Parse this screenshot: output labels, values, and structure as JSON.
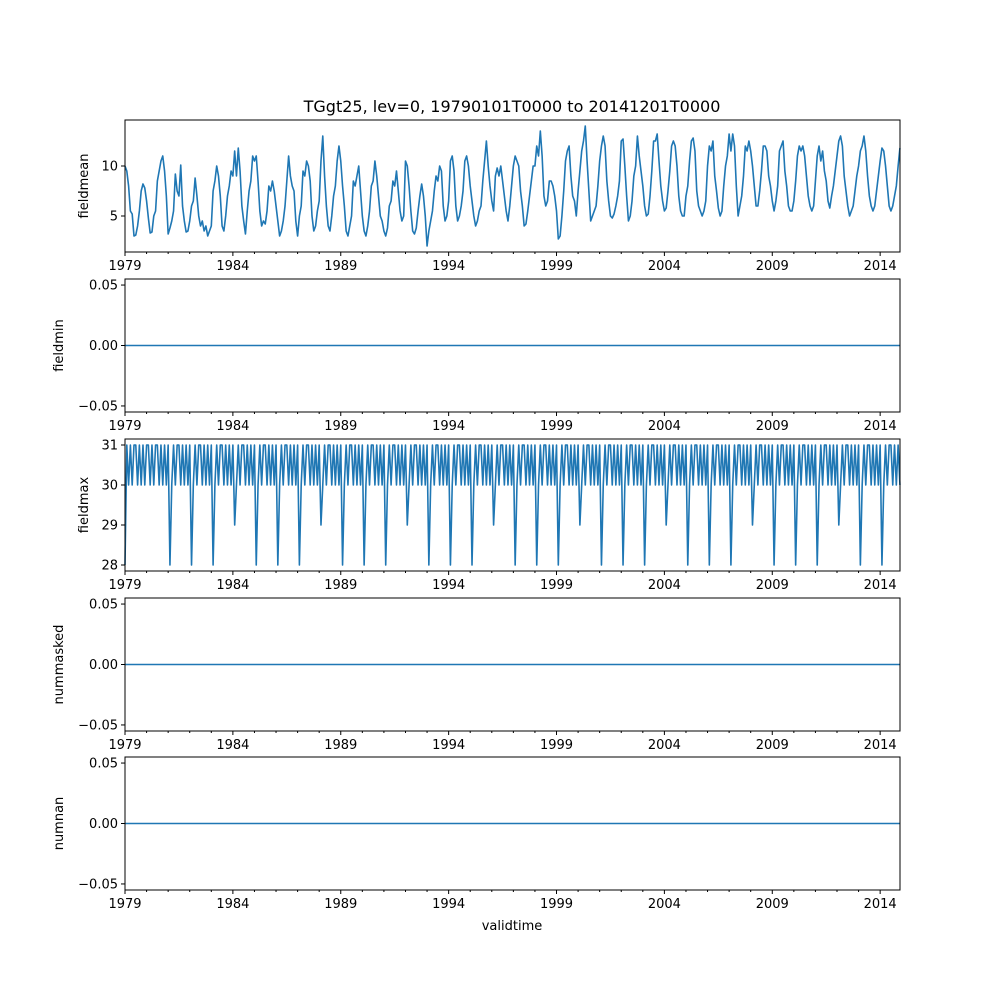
{
  "chart_data": {
    "type": "line",
    "title": "TGgt25, lev=0, 19790101T0000 to 20141201T0000",
    "xlabel": "validtime",
    "series_color": "#1f77b4",
    "x_start": "1979-01",
    "x_end": "2014-12",
    "x_range_years": [
      1979,
      2014.92
    ],
    "xtick_labels": [
      "1979",
      "1984",
      "1989",
      "1994",
      "1999",
      "2004",
      "2009",
      "2014"
    ],
    "panels": [
      {
        "name": "fieldmean",
        "ylabel": "fieldmean",
        "ylim": [
          1.4,
          14.6
        ],
        "yticks": [
          5,
          10
        ],
        "ytick_labels": [
          "5",
          "10"
        ],
        "annual_values": [
          [
            10.0,
            9.5,
            8.0,
            5.5,
            5.2,
            3.0,
            3.1,
            4.0,
            5.5,
            7.5,
            8.2,
            7.8
          ],
          [
            6.5,
            4.8,
            3.3,
            3.4,
            5.0,
            5.5,
            8.5,
            9.5,
            10.5,
            11.0,
            9.5,
            7.0
          ],
          [
            3.2,
            3.8,
            4.5,
            5.5,
            9.2,
            7.5,
            7.0,
            10.1,
            6.0,
            4.5,
            3.4,
            3.5
          ],
          [
            4.5,
            6.0,
            6.5,
            8.8,
            7.0,
            5.0,
            4.0,
            4.5,
            3.5,
            4.0,
            3.0,
            3.5
          ],
          [
            4.0,
            7.5,
            8.5,
            10.0,
            9.0,
            7.0,
            4.0,
            3.5,
            5.0,
            7.0,
            8.0,
            9.5
          ],
          [
            9.0,
            11.5,
            9.0,
            11.8,
            9.5,
            6.0,
            4.5,
            3.2,
            5.5,
            7.5,
            8.5,
            11.0
          ],
          [
            10.5,
            11.0,
            8.5,
            5.5,
            4.0,
            4.5,
            4.2,
            5.5,
            8.0,
            7.5,
            8.5,
            7.5
          ],
          [
            6.0,
            4.5,
            3.0,
            3.5,
            4.5,
            6.0,
            8.5,
            11.0,
            9.0,
            8.0,
            7.5,
            4.5
          ],
          [
            3.0,
            5.0,
            6.0,
            9.5,
            9.0,
            10.5,
            10.0,
            8.5,
            5.0,
            3.5,
            4.0,
            5.5
          ],
          [
            6.5,
            10.5,
            13.0,
            9.0,
            6.0,
            4.0,
            3.5,
            5.0,
            7.0,
            8.0,
            10.5,
            12.0
          ],
          [
            10.5,
            8.0,
            6.0,
            3.5,
            3.0,
            4.0,
            5.0,
            8.5,
            8.0,
            9.0,
            10.0,
            7.5
          ],
          [
            5.0,
            3.5,
            3.0,
            4.0,
            5.5,
            8.0,
            8.5,
            10.5,
            9.0,
            7.0,
            5.0,
            4.5
          ],
          [
            3.5,
            3.0,
            3.8,
            6.0,
            6.5,
            8.5,
            8.0,
            9.5,
            7.5,
            5.5,
            4.5,
            5.0
          ],
          [
            10.5,
            10.0,
            8.0,
            5.5,
            3.5,
            3.2,
            3.8,
            5.5,
            7.0,
            8.2,
            7.0,
            5.0
          ],
          [
            2.0,
            3.5,
            4.5,
            5.5,
            7.5,
            9.0,
            8.5,
            10.0,
            9.5,
            6.0,
            4.5,
            5.0
          ],
          [
            6.5,
            10.5,
            11.0,
            9.5,
            6.0,
            4.5,
            5.0,
            6.0,
            7.5,
            10.5,
            11.0,
            10.0
          ],
          [
            8.0,
            6.5,
            5.0,
            4.0,
            4.5,
            5.5,
            6.0,
            8.5,
            10.5,
            12.5,
            10.0,
            8.0
          ],
          [
            6.5,
            5.5,
            9.0,
            9.8,
            9.0,
            10.0,
            8.5,
            7.0,
            5.5,
            4.5,
            6.0,
            8.0
          ],
          [
            10.0,
            11.0,
            10.5,
            10.0,
            7.5,
            6.0,
            4.0,
            4.2,
            5.5,
            7.0,
            8.5,
            10.0
          ],
          [
            10.0,
            12.0,
            11.0,
            13.5,
            11.0,
            7.0,
            6.0,
            6.5,
            8.5,
            8.5,
            8.0,
            7.0
          ],
          [
            5.5,
            2.7,
            3.0,
            5.0,
            7.5,
            10.5,
            11.5,
            12.0,
            9.0,
            7.0,
            6.5,
            5.0
          ],
          [
            7.5,
            9.5,
            11.5,
            12.5,
            14.0,
            10.5,
            7.5,
            4.5,
            5.0,
            5.5,
            6.0,
            8.0
          ],
          [
            10.5,
            12.0,
            13.0,
            12.0,
            8.5,
            6.5,
            5.0,
            4.8,
            5.2,
            6.0,
            7.0,
            8.5
          ],
          [
            12.5,
            12.7,
            10.0,
            7.0,
            4.5,
            5.0,
            6.5,
            9.0,
            10.0,
            13.0,
            11.0,
            9.5
          ],
          [
            8.0,
            6.0,
            5.0,
            5.2,
            7.0,
            9.5,
            12.5,
            12.5,
            13.2,
            10.5,
            8.0,
            6.5
          ],
          [
            5.5,
            5.8,
            7.5,
            9.5,
            12.0,
            12.5,
            12.0,
            10.0,
            7.0,
            5.5,
            5.0,
            5.0
          ],
          [
            7.0,
            8.0,
            10.5,
            12.5,
            12.8,
            11.5,
            7.5,
            6.0,
            5.5,
            5.0,
            5.5,
            6.5
          ],
          [
            10.0,
            12.0,
            11.5,
            12.5,
            9.0,
            7.5,
            5.8,
            5.0,
            5.5,
            8.0,
            10.0,
            11.0
          ],
          [
            13.2,
            11.5,
            13.2,
            12.0,
            8.0,
            5.0,
            6.0,
            7.0,
            9.0,
            12.0,
            11.5,
            12.5
          ],
          [
            11.5,
            10.0,
            8.0,
            6.0,
            6.0,
            7.5,
            9.5,
            12.0,
            12.0,
            11.5,
            9.0,
            8.0
          ],
          [
            6.5,
            5.5,
            6.5,
            8.0,
            11.5,
            12.0,
            12.5,
            9.5,
            8.0,
            6.0,
            5.5,
            5.5
          ],
          [
            6.5,
            8.5,
            11.0,
            12.0,
            11.5,
            12.0,
            11.0,
            9.0,
            7.0,
            6.0,
            5.5,
            6.0
          ],
          [
            8.5,
            11.0,
            12.0,
            10.5,
            11.5,
            9.5,
            8.5,
            6.5,
            5.8,
            7.0,
            8.0,
            9.5
          ],
          [
            11.0,
            12.5,
            13.0,
            12.0,
            9.0,
            7.5,
            6.0,
            5.0,
            5.5,
            6.0,
            7.5,
            9.0
          ],
          [
            10.0,
            11.5,
            12.0,
            13.0,
            11.5,
            9.0,
            7.0,
            6.0,
            5.5,
            6.0,
            7.5,
            9.0
          ],
          [
            10.5,
            11.8,
            11.5,
            10.0,
            8.0,
            6.0,
            5.5,
            6.0,
            7.0,
            8.0,
            10.0,
            11.8
          ]
        ]
      },
      {
        "name": "fieldmin",
        "ylabel": "fieldmin",
        "ylim": [
          -0.055,
          0.055
        ],
        "yticks": [
          -0.05,
          0.0,
          0.05
        ],
        "ytick_labels": [
          "−0.05",
          "0.00",
          "0.05"
        ],
        "constant_value": 0
      },
      {
        "name": "fieldmax",
        "ylabel": "fieldmax",
        "ylim": [
          27.85,
          31.15
        ],
        "yticks": [
          28,
          29,
          30,
          31
        ],
        "ytick_labels": [
          "28",
          "29",
          "30",
          "31"
        ],
        "annual_values": [
          [
            28,
            31,
            30,
            31,
            30,
            31,
            31,
            30,
            31,
            30,
            31,
            30
          ],
          [
            31,
            31,
            30,
            31,
            30,
            31,
            31,
            30,
            31,
            30,
            31,
            30
          ],
          [
            31,
            28,
            30,
            31,
            30,
            31,
            31,
            30,
            31,
            30,
            31,
            30
          ],
          [
            31,
            28,
            30,
            31,
            30,
            31,
            31,
            30,
            31,
            30,
            31,
            30
          ],
          [
            31,
            28,
            30,
            31,
            30,
            31,
            31,
            30,
            31,
            30,
            31,
            30
          ],
          [
            31,
            29,
            30,
            31,
            30,
            31,
            31,
            30,
            31,
            30,
            31,
            30
          ],
          [
            31,
            28,
            30,
            31,
            30,
            31,
            31,
            30,
            31,
            30,
            31,
            30
          ],
          [
            31,
            28,
            30,
            31,
            30,
            31,
            31,
            30,
            31,
            30,
            31,
            30
          ],
          [
            31,
            28,
            30,
            31,
            30,
            31,
            31,
            30,
            31,
            30,
            31,
            30
          ],
          [
            31,
            29,
            30,
            31,
            30,
            31,
            31,
            30,
            31,
            30,
            31,
            30
          ],
          [
            31,
            28,
            30,
            31,
            30,
            31,
            31,
            30,
            31,
            30,
            31,
            30
          ],
          [
            31,
            28,
            30,
            31,
            30,
            31,
            31,
            30,
            31,
            30,
            31,
            30
          ],
          [
            31,
            28,
            30,
            31,
            30,
            31,
            31,
            30,
            31,
            30,
            31,
            30
          ],
          [
            31,
            29,
            30,
            31,
            30,
            31,
            31,
            30,
            31,
            30,
            31,
            30
          ],
          [
            31,
            28,
            30,
            31,
            30,
            31,
            31,
            30,
            31,
            30,
            31,
            30
          ],
          [
            31,
            28,
            30,
            31,
            30,
            31,
            31,
            30,
            31,
            30,
            31,
            30
          ],
          [
            31,
            28,
            30,
            31,
            30,
            31,
            31,
            30,
            31,
            30,
            31,
            30
          ],
          [
            31,
            29,
            30,
            31,
            30,
            31,
            31,
            30,
            31,
            30,
            31,
            30
          ],
          [
            31,
            28,
            30,
            31,
            30,
            31,
            31,
            30,
            31,
            30,
            31,
            30
          ],
          [
            31,
            28,
            30,
            31,
            30,
            31,
            31,
            30,
            31,
            30,
            31,
            30
          ],
          [
            31,
            28,
            30,
            31,
            30,
            31,
            31,
            30,
            31,
            30,
            31,
            30
          ],
          [
            31,
            29,
            30,
            31,
            30,
            31,
            31,
            30,
            31,
            30,
            31,
            30
          ],
          [
            31,
            28,
            30,
            31,
            30,
            31,
            31,
            30,
            31,
            30,
            31,
            30
          ],
          [
            31,
            28,
            30,
            31,
            30,
            31,
            31,
            30,
            31,
            30,
            31,
            30
          ],
          [
            31,
            28,
            30,
            31,
            30,
            31,
            31,
            30,
            31,
            30,
            31,
            30
          ],
          [
            31,
            29,
            30,
            31,
            30,
            31,
            31,
            30,
            31,
            30,
            31,
            30
          ],
          [
            31,
            28,
            30,
            31,
            30,
            31,
            31,
            30,
            31,
            30,
            31,
            30
          ],
          [
            31,
            28,
            30,
            31,
            30,
            31,
            31,
            30,
            31,
            30,
            31,
            30
          ],
          [
            31,
            28,
            30,
            31,
            30,
            31,
            31,
            30,
            31,
            30,
            31,
            30
          ],
          [
            31,
            29,
            30,
            31,
            30,
            31,
            31,
            30,
            31,
            30,
            31,
            30
          ],
          [
            31,
            28,
            30,
            31,
            30,
            31,
            31,
            30,
            31,
            30,
            31,
            30
          ],
          [
            31,
            28,
            30,
            31,
            30,
            31,
            31,
            30,
            31,
            30,
            31,
            30
          ],
          [
            31,
            28,
            30,
            31,
            30,
            31,
            31,
            30,
            31,
            30,
            31,
            30
          ],
          [
            31,
            29,
            30,
            31,
            30,
            31,
            31,
            30,
            31,
            30,
            31,
            30
          ],
          [
            31,
            28,
            30,
            31,
            30,
            31,
            31,
            30,
            31,
            30,
            31,
            30
          ],
          [
            31,
            28,
            30,
            31,
            30,
            31,
            31,
            30,
            31,
            30,
            31,
            30
          ]
        ]
      },
      {
        "name": "nummasked",
        "ylabel": "nummasked",
        "ylim": [
          -0.055,
          0.055
        ],
        "yticks": [
          -0.05,
          0.0,
          0.05
        ],
        "ytick_labels": [
          "−0.05",
          "0.00",
          "0.05"
        ],
        "constant_value": 0
      },
      {
        "name": "numnan",
        "ylabel": "numnan",
        "ylim": [
          -0.055,
          0.055
        ],
        "yticks": [
          -0.05,
          0.0,
          0.05
        ],
        "ytick_labels": [
          "−0.05",
          "0.00",
          "0.05"
        ],
        "constant_value": 0
      }
    ]
  }
}
